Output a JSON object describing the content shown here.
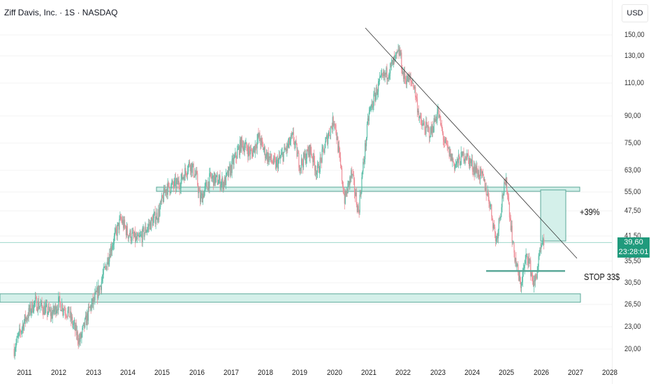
{
  "header": {
    "symbol_title": "Ziff Davis, Inc. · 1S · NASDAQ"
  },
  "price_axis": {
    "currency": "USD",
    "ticks": [
      "150,00",
      "130,00",
      "110,00",
      "90,00",
      "75,00",
      "63,00",
      "55,00",
      "47,50",
      "41,50",
      "35,50",
      "30,50",
      "26,50",
      "23,00",
      "20,00"
    ],
    "current_price": "39,60",
    "countdown": "23:28:01"
  },
  "time_axis": {
    "ticks": [
      "2011",
      "2012",
      "2013",
      "2014",
      "2015",
      "2016",
      "2017",
      "2018",
      "2019",
      "2020",
      "2021",
      "2022",
      "2023",
      "2024",
      "2025",
      "2026",
      "2027",
      "2028"
    ]
  },
  "annotations": {
    "target_label": "+39%",
    "stop_label": "STOP 33$"
  },
  "colors": {
    "up": "#5cbfa9",
    "down": "#ee8e98",
    "zone": "#d4f0ea",
    "zone_border": "#5aa898",
    "price": "#1f9a7c"
  },
  "chart_data": {
    "type": "candlestick",
    "scale": "log",
    "ylim": [
      18,
      165
    ],
    "xlim": [
      2010.3,
      2028.3
    ],
    "path": [
      [
        2010.7,
        20
      ],
      [
        2011.0,
        24
      ],
      [
        2011.3,
        27
      ],
      [
        2011.8,
        25
      ],
      [
        2012.0,
        27
      ],
      [
        2012.3,
        25
      ],
      [
        2012.6,
        21
      ],
      [
        2012.9,
        26
      ],
      [
        2013.0,
        27
      ],
      [
        2013.2,
        30
      ],
      [
        2013.5,
        38
      ],
      [
        2013.8,
        46
      ],
      [
        2014.0,
        42
      ],
      [
        2014.3,
        40
      ],
      [
        2014.6,
        44
      ],
      [
        2014.9,
        48
      ],
      [
        2015.1,
        56
      ],
      [
        2015.5,
        58
      ],
      [
        2015.8,
        66
      ],
      [
        2016.0,
        60
      ],
      [
        2016.1,
        52
      ],
      [
        2016.4,
        60
      ],
      [
        2016.8,
        58
      ],
      [
        2017.0,
        64
      ],
      [
        2017.3,
        75
      ],
      [
        2017.6,
        70
      ],
      [
        2017.8,
        78
      ],
      [
        2018.0,
        70
      ],
      [
        2018.3,
        65
      ],
      [
        2018.6,
        72
      ],
      [
        2018.8,
        78
      ],
      [
        2019.0,
        65
      ],
      [
        2019.3,
        72
      ],
      [
        2019.5,
        62
      ],
      [
        2019.8,
        78
      ],
      [
        2020.0,
        88
      ],
      [
        2020.2,
        62
      ],
      [
        2020.3,
        52
      ],
      [
        2020.5,
        62
      ],
      [
        2020.7,
        48
      ],
      [
        2020.8,
        60
      ],
      [
        2021.0,
        90
      ],
      [
        2021.3,
        110
      ],
      [
        2021.6,
        120
      ],
      [
        2021.9,
        135
      ],
      [
        2022.0,
        115
      ],
      [
        2022.3,
        110
      ],
      [
        2022.5,
        85
      ],
      [
        2022.8,
        80
      ],
      [
        2023.0,
        92
      ],
      [
        2023.2,
        75
      ],
      [
        2023.5,
        65
      ],
      [
        2023.8,
        70
      ],
      [
        2024.0,
        65
      ],
      [
        2024.3,
        60
      ],
      [
        2024.5,
        52
      ],
      [
        2024.7,
        40
      ],
      [
        2024.9,
        55
      ],
      [
        2025.0,
        58
      ],
      [
        2025.2,
        38
      ],
      [
        2025.4,
        30
      ],
      [
        2025.6,
        37
      ],
      [
        2025.8,
        30
      ],
      [
        2026.0,
        38
      ],
      [
        2026.1,
        39.6
      ]
    ],
    "levels": {
      "resistance": [
        55,
        56.5
      ],
      "support": [
        27,
        28.5
      ],
      "stop": 33,
      "target_box": [
        40,
        55.5
      ]
    },
    "trendline": [
      [
        2021.0,
        160
      ],
      [
        2027.0,
        36
      ]
    ]
  }
}
